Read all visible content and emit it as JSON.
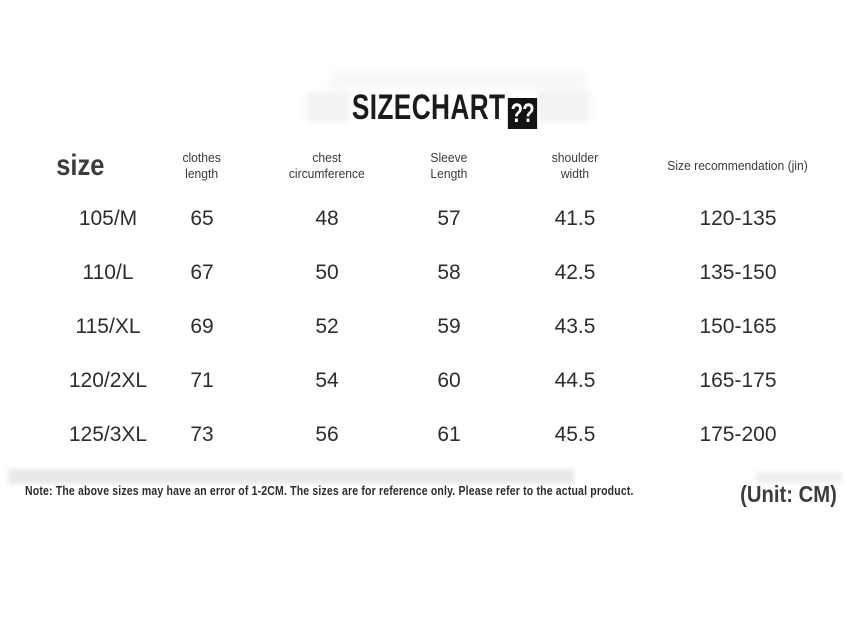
{
  "title": {
    "text": "SIZECHART",
    "missing_glyphs": "??"
  },
  "chart_data": {
    "type": "table",
    "title": "SIZECHART",
    "columns": [
      "size",
      "clothes\nlength",
      "chest\ncircumference",
      "Sleeve\nLength",
      "shoulder\nwidth",
      "Size recommendation (jin)"
    ],
    "rows": [
      [
        "105/M",
        "65",
        "48",
        "57",
        "41.5",
        "120-135"
      ],
      [
        "110/L",
        "67",
        "50",
        "58",
        "42.5",
        "135-150"
      ],
      [
        "115/XL",
        "69",
        "52",
        "59",
        "43.5",
        "150-165"
      ],
      [
        "120/2XL",
        "71",
        "54",
        "60",
        "44.5",
        "165-175"
      ],
      [
        "125/3XL",
        "73",
        "56",
        "61",
        "45.5",
        "175-200"
      ]
    ],
    "note": "Note: The above sizes may have an error of 1-2CM. The sizes are for reference only. Please refer to the actual product.",
    "unit_label": "(Unit: CM)"
  },
  "colors": {
    "background": "#ffffff",
    "text_primary": "#2d2d2d",
    "tofu_background": "#131313",
    "tofu_foreground": "#ffffff"
  }
}
